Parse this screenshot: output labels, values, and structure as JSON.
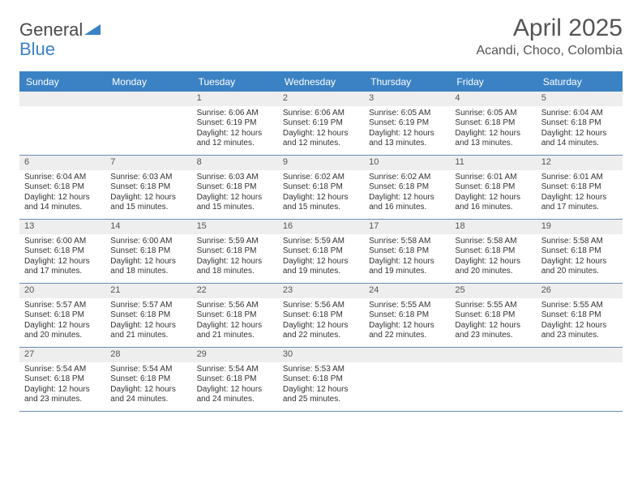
{
  "brand": {
    "word1": "General",
    "word2": "Blue"
  },
  "title": "April 2025",
  "location": "Acandi, Choco, Colombia",
  "colors": {
    "accent": "#3b82c4",
    "row_border": "#6d8bb0",
    "daynum_bg": "#eeeeee",
    "text": "#333333",
    "muted": "#555555",
    "background": "#ffffff"
  },
  "day_headers": [
    "Sunday",
    "Monday",
    "Tuesday",
    "Wednesday",
    "Thursday",
    "Friday",
    "Saturday"
  ],
  "weeks": [
    [
      null,
      null,
      {
        "n": "1",
        "sr": "6:06 AM",
        "ss": "6:19 PM",
        "dl": "12 hours and 12 minutes."
      },
      {
        "n": "2",
        "sr": "6:06 AM",
        "ss": "6:19 PM",
        "dl": "12 hours and 12 minutes."
      },
      {
        "n": "3",
        "sr": "6:05 AM",
        "ss": "6:19 PM",
        "dl": "12 hours and 13 minutes."
      },
      {
        "n": "4",
        "sr": "6:05 AM",
        "ss": "6:18 PM",
        "dl": "12 hours and 13 minutes."
      },
      {
        "n": "5",
        "sr": "6:04 AM",
        "ss": "6:18 PM",
        "dl": "12 hours and 14 minutes."
      }
    ],
    [
      {
        "n": "6",
        "sr": "6:04 AM",
        "ss": "6:18 PM",
        "dl": "12 hours and 14 minutes."
      },
      {
        "n": "7",
        "sr": "6:03 AM",
        "ss": "6:18 PM",
        "dl": "12 hours and 15 minutes."
      },
      {
        "n": "8",
        "sr": "6:03 AM",
        "ss": "6:18 PM",
        "dl": "12 hours and 15 minutes."
      },
      {
        "n": "9",
        "sr": "6:02 AM",
        "ss": "6:18 PM",
        "dl": "12 hours and 15 minutes."
      },
      {
        "n": "10",
        "sr": "6:02 AM",
        "ss": "6:18 PM",
        "dl": "12 hours and 16 minutes."
      },
      {
        "n": "11",
        "sr": "6:01 AM",
        "ss": "6:18 PM",
        "dl": "12 hours and 16 minutes."
      },
      {
        "n": "12",
        "sr": "6:01 AM",
        "ss": "6:18 PM",
        "dl": "12 hours and 17 minutes."
      }
    ],
    [
      {
        "n": "13",
        "sr": "6:00 AM",
        "ss": "6:18 PM",
        "dl": "12 hours and 17 minutes."
      },
      {
        "n": "14",
        "sr": "6:00 AM",
        "ss": "6:18 PM",
        "dl": "12 hours and 18 minutes."
      },
      {
        "n": "15",
        "sr": "5:59 AM",
        "ss": "6:18 PM",
        "dl": "12 hours and 18 minutes."
      },
      {
        "n": "16",
        "sr": "5:59 AM",
        "ss": "6:18 PM",
        "dl": "12 hours and 19 minutes."
      },
      {
        "n": "17",
        "sr": "5:58 AM",
        "ss": "6:18 PM",
        "dl": "12 hours and 19 minutes."
      },
      {
        "n": "18",
        "sr": "5:58 AM",
        "ss": "6:18 PM",
        "dl": "12 hours and 20 minutes."
      },
      {
        "n": "19",
        "sr": "5:58 AM",
        "ss": "6:18 PM",
        "dl": "12 hours and 20 minutes."
      }
    ],
    [
      {
        "n": "20",
        "sr": "5:57 AM",
        "ss": "6:18 PM",
        "dl": "12 hours and 20 minutes."
      },
      {
        "n": "21",
        "sr": "5:57 AM",
        "ss": "6:18 PM",
        "dl": "12 hours and 21 minutes."
      },
      {
        "n": "22",
        "sr": "5:56 AM",
        "ss": "6:18 PM",
        "dl": "12 hours and 21 minutes."
      },
      {
        "n": "23",
        "sr": "5:56 AM",
        "ss": "6:18 PM",
        "dl": "12 hours and 22 minutes."
      },
      {
        "n": "24",
        "sr": "5:55 AM",
        "ss": "6:18 PM",
        "dl": "12 hours and 22 minutes."
      },
      {
        "n": "25",
        "sr": "5:55 AM",
        "ss": "6:18 PM",
        "dl": "12 hours and 23 minutes."
      },
      {
        "n": "26",
        "sr": "5:55 AM",
        "ss": "6:18 PM",
        "dl": "12 hours and 23 minutes."
      }
    ],
    [
      {
        "n": "27",
        "sr": "5:54 AM",
        "ss": "6:18 PM",
        "dl": "12 hours and 23 minutes."
      },
      {
        "n": "28",
        "sr": "5:54 AM",
        "ss": "6:18 PM",
        "dl": "12 hours and 24 minutes."
      },
      {
        "n": "29",
        "sr": "5:54 AM",
        "ss": "6:18 PM",
        "dl": "12 hours and 24 minutes."
      },
      {
        "n": "30",
        "sr": "5:53 AM",
        "ss": "6:18 PM",
        "dl": "12 hours and 25 minutes."
      },
      null,
      null,
      null
    ]
  ],
  "labels": {
    "sunrise": "Sunrise:",
    "sunset": "Sunset:",
    "daylight": "Daylight:"
  }
}
